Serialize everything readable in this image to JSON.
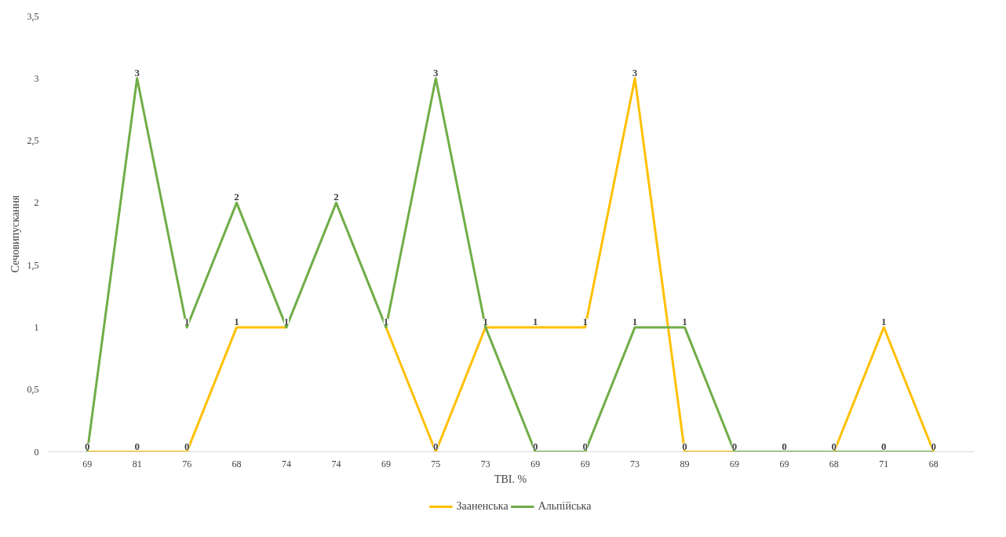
{
  "chart_data": {
    "type": "line",
    "xlabel": "TBI. %",
    "ylabel": "Сечовипускання",
    "categories": [
      "69",
      "81",
      "76",
      "68",
      "74",
      "74",
      "69",
      "75",
      "73",
      "69",
      "69",
      "73",
      "89",
      "69",
      "69",
      "68",
      "71",
      "68"
    ],
    "series": [
      {
        "name": "Зааненська",
        "color": "#ffc000",
        "values": [
          0,
          0,
          0,
          1,
          1,
          null,
          1,
          0,
          1,
          1,
          1,
          3,
          0,
          0,
          0,
          0,
          1,
          0
        ],
        "value_labels": [
          null,
          "0",
          "0",
          "1",
          null,
          null,
          null,
          "0",
          null,
          "1",
          "1",
          "3",
          "0",
          null,
          null,
          null,
          "1",
          null
        ]
      },
      {
        "name": "Альпійська",
        "color": "#70ad47",
        "values": [
          0,
          3,
          1,
          2,
          1,
          2,
          1,
          3,
          1,
          0,
          0,
          1,
          1,
          0,
          0,
          0,
          0,
          0
        ],
        "value_labels": [
          "0",
          "3",
          "1",
          "2",
          "1",
          "2",
          "1",
          "3",
          "1",
          "0",
          "0",
          "1",
          "1",
          "0",
          "0",
          "0",
          "0",
          "0"
        ]
      }
    ],
    "ylim": [
      0,
      3.5
    ],
    "yticks": [
      0,
      {
        "value": 0.5,
        "label": "0,5"
      },
      1,
      {
        "value": 1.5,
        "label": "1,5"
      },
      2,
      {
        "value": 2.5,
        "label": "2,5"
      },
      3,
      {
        "value": 3.5,
        "label": "3,5"
      }
    ],
    "legend": "bottom",
    "grid": false,
    "line_style": "solid"
  }
}
